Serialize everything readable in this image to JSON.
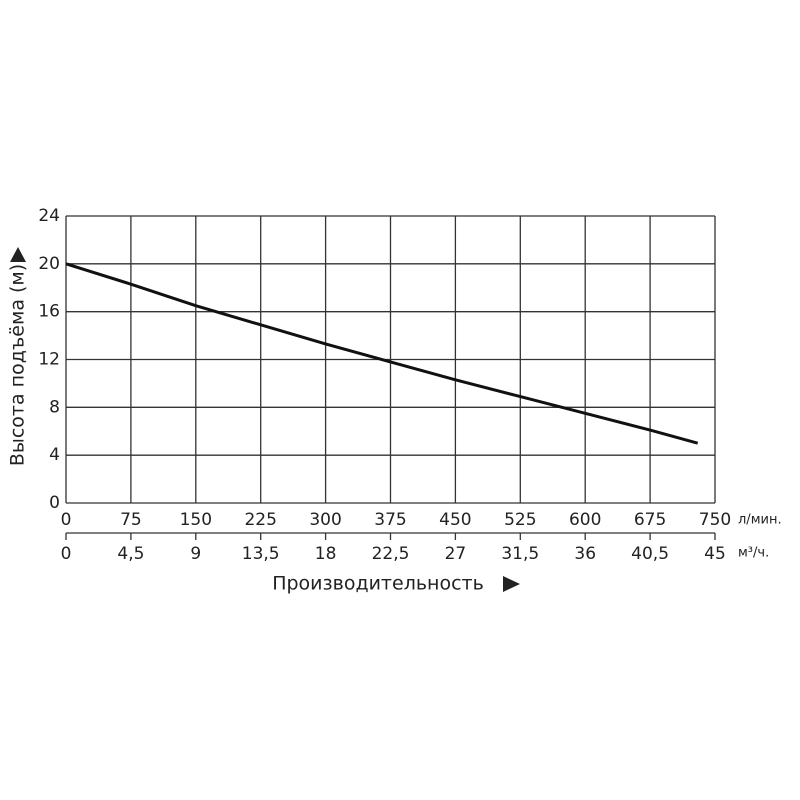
{
  "chart_data": {
    "type": "line",
    "ylabel": "Высота подъёма (м)",
    "xlabel": "Производительность",
    "x_unit": "л/мин.",
    "x2_unit": "м³/ч.",
    "xlim": [
      0,
      750
    ],
    "xticks": [
      0,
      75,
      150,
      225,
      300,
      375,
      450,
      525,
      600,
      675,
      750
    ],
    "x2lim": [
      0,
      45
    ],
    "x2ticks": [
      0,
      {
        "value": 4.5,
        "label": "4,5"
      },
      9,
      {
        "value": 13.5,
        "label": "13,5"
      },
      18,
      {
        "value": 22.5,
        "label": "22,5"
      },
      27,
      {
        "value": 31.5,
        "label": "31,5"
      },
      36,
      {
        "value": 40.5,
        "label": "40,5"
      },
      45
    ],
    "ylim": [
      0,
      24
    ],
    "yticks": [
      0,
      4,
      8,
      12,
      16,
      20,
      24
    ],
    "grid": true,
    "series": [
      {
        "color": "#111111",
        "x": [
          0,
          75,
          150,
          225,
          300,
          375,
          450,
          525,
          600,
          675,
          730
        ],
        "values": [
          20,
          18.3,
          16.5,
          14.9,
          13.3,
          11.8,
          10.3,
          8.9,
          7.5,
          6.1,
          5.0
        ]
      }
    ]
  }
}
